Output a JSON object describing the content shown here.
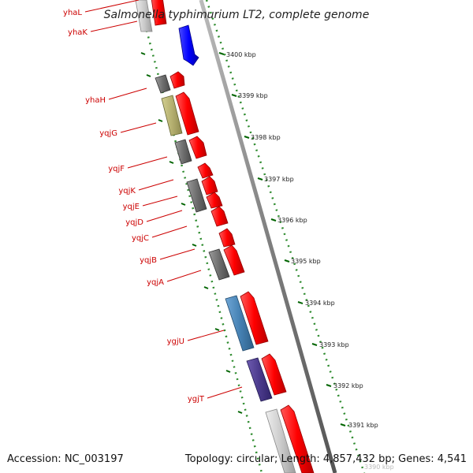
{
  "title": "Salmonella typhimurium LT2, complete genome",
  "footer": {
    "accession": "Accession: NC_003197",
    "topology": "Topology: circular; Length: 4,857,432 bp; Genes: 4,541"
  },
  "colors": {
    "forward_gene": "#ff0000",
    "label": "#cc0000",
    "backbone": "#808080",
    "gc_dots": "#2e8b2e",
    "tick": "#006400",
    "grey_gene": "#707070",
    "olive_gene": "#b5b070",
    "steel_blue_gene": "#4682b4",
    "indigo_gene": "#4b3a8c",
    "blue_gene": "#0000ff",
    "light_grey_gene": "#cccccc"
  },
  "gene_labels": [
    "yhaL",
    "yhaK",
    "yhaH",
    "yqjG",
    "yqjF",
    "yqjK",
    "yqjE",
    "yqjD",
    "yqjC",
    "yqjB",
    "yqjA",
    "ygjU",
    "ygjT"
  ],
  "scale": {
    "unit": "kbp",
    "ticks": [
      "3400 kbp",
      "3399 kbp",
      "3398 kbp",
      "3397 kbp",
      "3396 kbp",
      "3395 kbp",
      "3394 kbp",
      "3393 kbp",
      "3392 kbp",
      "3391 kbp",
      "3390 kbp"
    ]
  },
  "genes": [
    {
      "name": "yhaL",
      "strand": "forward",
      "color": "forward_gene"
    },
    {
      "name": "yhaK",
      "strand": "reverse",
      "color": "light_grey_gene"
    },
    {
      "name": "unlabeled",
      "strand": "forward",
      "color": "blue_gene"
    },
    {
      "name": "yhaH",
      "strand": "reverse",
      "color": "grey_gene"
    },
    {
      "name": "yqjG",
      "strand": "reverse",
      "color": "olive_gene"
    },
    {
      "name": "yqjF",
      "strand": "reverse",
      "color": "grey_gene"
    },
    {
      "name": "yqjK",
      "strand": "forward",
      "color": "forward_gene"
    },
    {
      "name": "yqjE",
      "strand": "reverse",
      "color": "grey_gene"
    },
    {
      "name": "yqjD",
      "strand": "forward",
      "color": "forward_gene"
    },
    {
      "name": "yqjC",
      "strand": "forward",
      "color": "forward_gene"
    },
    {
      "name": "yqjB",
      "strand": "reverse",
      "color": "grey_gene"
    },
    {
      "name": "yqjA",
      "strand": "forward",
      "color": "forward_gene"
    },
    {
      "name": "ygjU",
      "strand": "reverse",
      "color": "steel_blue_gene"
    },
    {
      "name": "ygjT",
      "strand": "reverse",
      "color": "indigo_gene"
    }
  ]
}
